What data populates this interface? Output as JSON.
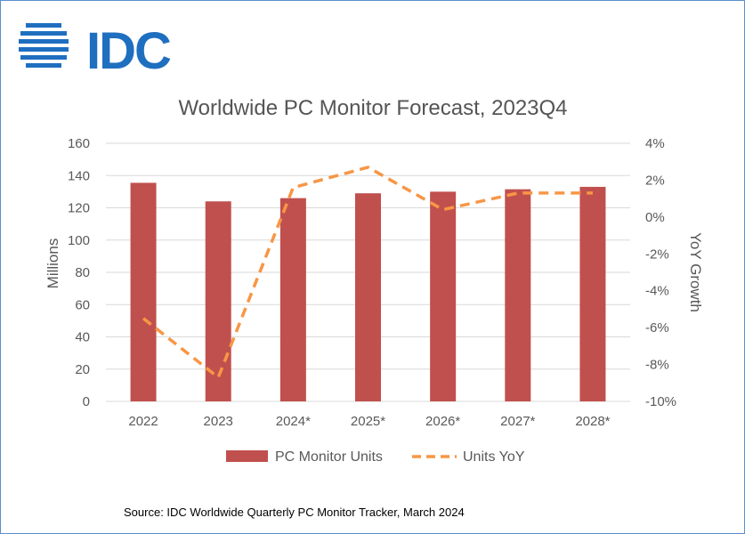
{
  "brand": {
    "logo_text": "IDC",
    "logo_color": "#1f6fc0"
  },
  "source_note": "Source:  IDC Worldwide Quarterly PC Monitor Tracker, March 2024",
  "chart_data": {
    "type": "bar",
    "title": "Worldwide PC Monitor Forecast, 2023Q4",
    "categories": [
      "2022",
      "2023",
      "2024*",
      "2025*",
      "2026*",
      "2027*",
      "2028*"
    ],
    "series": [
      {
        "name": "PC Monitor Units",
        "kind": "bar",
        "axis": "left",
        "color": "#c0504d",
        "values": [
          135.5,
          124,
          126,
          129,
          130,
          131.5,
          133
        ]
      },
      {
        "name": "Units YoY",
        "kind": "line",
        "style": "dashed",
        "axis": "right",
        "color": "#f79646",
        "values": [
          -5.5,
          -8.7,
          1.6,
          2.7,
          0.4,
          1.3,
          1.3
        ]
      }
    ],
    "ylabel": "Millions",
    "ylim": [
      0,
      160
    ],
    "yticks": [
      "0",
      "20",
      "40",
      "60",
      "80",
      "100",
      "120",
      "140",
      "160"
    ],
    "y2label": "YoY Growth",
    "y2lim": [
      -10,
      4
    ],
    "y2ticks": [
      "-10%",
      "-8%",
      "-6%",
      "-4%",
      "-2%",
      "0%",
      "2%",
      "4%"
    ],
    "grid": true,
    "legend_position": "bottom"
  }
}
